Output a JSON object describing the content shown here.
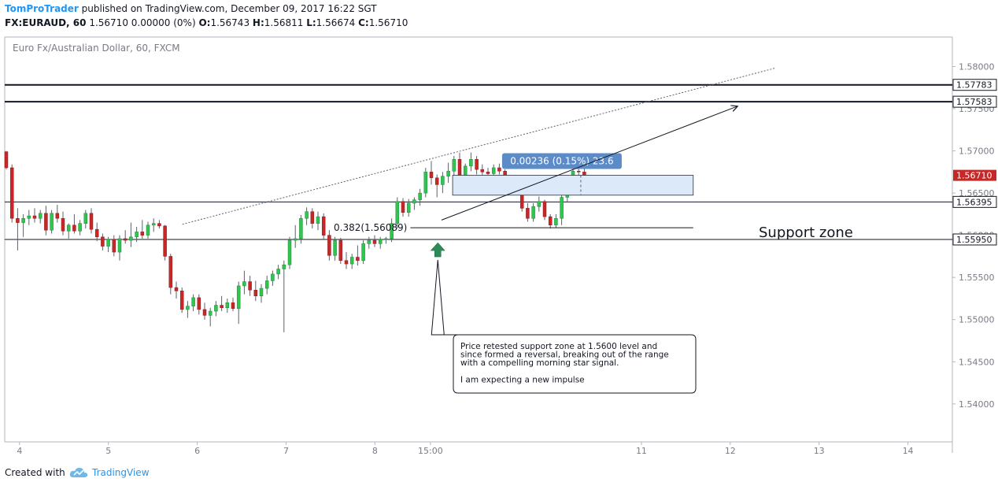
{
  "header": {
    "author": "TomProTrader",
    "published_text": "published on TradingView.com, December 09, 2017 16:22 SGT",
    "symbol": "FX:EURAUD, 60",
    "last": "1.56710",
    "change": "0.00000 (0%)",
    "o_label": "O:",
    "o_value": "1.56743",
    "h_label": "H:",
    "h_value": "1.56811",
    "l_label": "L:",
    "l_value": "1.56674",
    "c_label": "C:",
    "c_value": "1.56710"
  },
  "footer": {
    "created_with": "Created with",
    "brand": "TradingView"
  },
  "colors": {
    "up": "#26a69a",
    "up_fill": "#2fc54e",
    "down": "#c62828",
    "brand": "#2196f3",
    "label_bg": "#5b8bc9"
  },
  "chart_data": {
    "type": "candlestick",
    "instrument_label": "Euro Fx/Australian Dollar, 60, FXCM",
    "y_range": [
      1.5355,
      1.5835
    ],
    "x_range": [
      "2017-12-03T20:00",
      "2017-12-14T12:00"
    ],
    "y_ticks": [
      "1.58000",
      "1.57500",
      "1.57000",
      "1.56500",
      "1.56000",
      "1.55500",
      "1.55000",
      "1.54500",
      "1.54000"
    ],
    "x_ticks": [
      {
        "label": "4",
        "t": "2017-12-04T00:00"
      },
      {
        "label": "5",
        "t": "2017-12-05T00:00"
      },
      {
        "label": "6",
        "t": "2017-12-06T00:00"
      },
      {
        "label": "7",
        "t": "2017-12-07T00:00"
      },
      {
        "label": "8",
        "t": "2017-12-08T00:00"
      },
      {
        "label": "15:00",
        "t": "2017-12-08T15:00"
      },
      {
        "label": "11",
        "t": "2017-12-11T00:00"
      },
      {
        "label": "12",
        "t": "2017-12-12T00:00"
      },
      {
        "label": "13",
        "t": "2017-12-13T00:00"
      },
      {
        "label": "14",
        "t": "2017-12-14T00:00"
      }
    ],
    "horizontal_levels": [
      {
        "price": 1.57783,
        "label": "1.57783",
        "weight": "heavy"
      },
      {
        "price": 1.57583,
        "label": "1.57583",
        "weight": "heavy"
      },
      {
        "price": 1.56395,
        "label": "1.56395",
        "weight": "light"
      },
      {
        "price": 1.5595,
        "label": "1.55950",
        "weight": "light"
      }
    ],
    "last_price": {
      "price": 1.5671,
      "label": "1.56710"
    },
    "candles": [
      {
        "o": 1.5699,
        "h": 1.57,
        "l": 1.5678,
        "c": 1.568
      },
      {
        "o": 1.568,
        "h": 1.5684,
        "l": 1.5615,
        "c": 1.562
      },
      {
        "o": 1.562,
        "h": 1.5632,
        "l": 1.5582,
        "c": 1.5615
      },
      {
        "o": 1.5615,
        "h": 1.5625,
        "l": 1.5598,
        "c": 1.562
      },
      {
        "o": 1.562,
        "h": 1.563,
        "l": 1.5612,
        "c": 1.5623
      },
      {
        "o": 1.5623,
        "h": 1.5632,
        "l": 1.5615,
        "c": 1.562
      },
      {
        "o": 1.562,
        "h": 1.563,
        "l": 1.5614,
        "c": 1.5626
      },
      {
        "o": 1.5626,
        "h": 1.5635,
        "l": 1.56,
        "c": 1.5606
      },
      {
        "o": 1.5606,
        "h": 1.563,
        "l": 1.5602,
        "c": 1.5626
      },
      {
        "o": 1.5626,
        "h": 1.5636,
        "l": 1.5615,
        "c": 1.562
      },
      {
        "o": 1.562,
        "h": 1.5628,
        "l": 1.56,
        "c": 1.5605
      },
      {
        "o": 1.5605,
        "h": 1.5614,
        "l": 1.5596,
        "c": 1.5612
      },
      {
        "o": 1.5612,
        "h": 1.5625,
        "l": 1.5602,
        "c": 1.5605
      },
      {
        "o": 1.5605,
        "h": 1.5618,
        "l": 1.56,
        "c": 1.5614
      },
      {
        "o": 1.5614,
        "h": 1.563,
        "l": 1.5608,
        "c": 1.5626
      },
      {
        "o": 1.5626,
        "h": 1.5632,
        "l": 1.5602,
        "c": 1.5607
      },
      {
        "o": 1.5607,
        "h": 1.5615,
        "l": 1.5593,
        "c": 1.5598
      },
      {
        "o": 1.5598,
        "h": 1.5602,
        "l": 1.5582,
        "c": 1.5587
      },
      {
        "o": 1.5587,
        "h": 1.5598,
        "l": 1.558,
        "c": 1.5595
      },
      {
        "o": 1.5595,
        "h": 1.56,
        "l": 1.5575,
        "c": 1.558
      },
      {
        "o": 1.558,
        "h": 1.56,
        "l": 1.557,
        "c": 1.5596
      },
      {
        "o": 1.5596,
        "h": 1.5606,
        "l": 1.559,
        "c": 1.5594
      },
      {
        "o": 1.5594,
        "h": 1.5615,
        "l": 1.5586,
        "c": 1.5598
      },
      {
        "o": 1.5598,
        "h": 1.561,
        "l": 1.5592,
        "c": 1.5604
      },
      {
        "o": 1.5604,
        "h": 1.5618,
        "l": 1.5596,
        "c": 1.56
      },
      {
        "o": 1.56,
        "h": 1.5616,
        "l": 1.5596,
        "c": 1.5612
      },
      {
        "o": 1.5612,
        "h": 1.562,
        "l": 1.5604,
        "c": 1.5614
      },
      {
        "o": 1.5614,
        "h": 1.5618,
        "l": 1.5608,
        "c": 1.5611
      },
      {
        "o": 1.5611,
        "h": 1.5612,
        "l": 1.557,
        "c": 1.5575
      },
      {
        "o": 1.5575,
        "h": 1.5578,
        "l": 1.553,
        "c": 1.5538
      },
      {
        "o": 1.5538,
        "h": 1.5545,
        "l": 1.5525,
        "c": 1.5534
      },
      {
        "o": 1.5534,
        "h": 1.5538,
        "l": 1.5508,
        "c": 1.5512
      },
      {
        "o": 1.5512,
        "h": 1.5522,
        "l": 1.5502,
        "c": 1.5516
      },
      {
        "o": 1.5516,
        "h": 1.553,
        "l": 1.551,
        "c": 1.5526
      },
      {
        "o": 1.5526,
        "h": 1.553,
        "l": 1.5506,
        "c": 1.5512
      },
      {
        "o": 1.5512,
        "h": 1.552,
        "l": 1.55,
        "c": 1.5505
      },
      {
        "o": 1.5505,
        "h": 1.5514,
        "l": 1.5492,
        "c": 1.551
      },
      {
        "o": 1.551,
        "h": 1.5522,
        "l": 1.5504,
        "c": 1.5517
      },
      {
        "o": 1.5517,
        "h": 1.5528,
        "l": 1.551,
        "c": 1.5514
      },
      {
        "o": 1.5514,
        "h": 1.5525,
        "l": 1.5508,
        "c": 1.552
      },
      {
        "o": 1.552,
        "h": 1.5526,
        "l": 1.551,
        "c": 1.5513
      },
      {
        "o": 1.5513,
        "h": 1.5545,
        "l": 1.5495,
        "c": 1.554
      },
      {
        "o": 1.554,
        "h": 1.5558,
        "l": 1.553,
        "c": 1.5545
      },
      {
        "o": 1.5545,
        "h": 1.5552,
        "l": 1.5528,
        "c": 1.5535
      },
      {
        "o": 1.5535,
        "h": 1.5546,
        "l": 1.5522,
        "c": 1.5528
      },
      {
        "o": 1.5528,
        "h": 1.5542,
        "l": 1.552,
        "c": 1.5537
      },
      {
        "o": 1.5537,
        "h": 1.5552,
        "l": 1.553,
        "c": 1.5546
      },
      {
        "o": 1.5546,
        "h": 1.5558,
        "l": 1.554,
        "c": 1.5554
      },
      {
        "o": 1.5554,
        "h": 1.5565,
        "l": 1.5548,
        "c": 1.556
      },
      {
        "o": 1.556,
        "h": 1.557,
        "l": 1.5485,
        "c": 1.5565
      },
      {
        "o": 1.5565,
        "h": 1.5598,
        "l": 1.556,
        "c": 1.5594
      },
      {
        "o": 1.5594,
        "h": 1.5612,
        "l": 1.5585,
        "c": 1.5596
      },
      {
        "o": 1.5596,
        "h": 1.5624,
        "l": 1.559,
        "c": 1.562
      },
      {
        "o": 1.562,
        "h": 1.5633,
        "l": 1.5612,
        "c": 1.5628
      },
      {
        "o": 1.5628,
        "h": 1.5632,
        "l": 1.5608,
        "c": 1.5614
      },
      {
        "o": 1.5614,
        "h": 1.5628,
        "l": 1.5606,
        "c": 1.5622
      },
      {
        "o": 1.5622,
        "h": 1.5626,
        "l": 1.5595,
        "c": 1.56
      },
      {
        "o": 1.56,
        "h": 1.5606,
        "l": 1.557,
        "c": 1.5576
      },
      {
        "o": 1.5576,
        "h": 1.5598,
        "l": 1.557,
        "c": 1.5594
      },
      {
        "o": 1.5594,
        "h": 1.5597,
        "l": 1.5566,
        "c": 1.557
      },
      {
        "o": 1.557,
        "h": 1.558,
        "l": 1.556,
        "c": 1.5566
      },
      {
        "o": 1.5566,
        "h": 1.5578,
        "l": 1.556,
        "c": 1.5574
      },
      {
        "o": 1.5574,
        "h": 1.5588,
        "l": 1.5564,
        "c": 1.557
      },
      {
        "o": 1.557,
        "h": 1.5594,
        "l": 1.5566,
        "c": 1.559
      },
      {
        "o": 1.559,
        "h": 1.5598,
        "l": 1.5584,
        "c": 1.5594
      },
      {
        "o": 1.5594,
        "h": 1.56,
        "l": 1.5586,
        "c": 1.559
      },
      {
        "o": 1.559,
        "h": 1.5598,
        "l": 1.5584,
        "c": 1.5595
      },
      {
        "o": 1.5595,
        "h": 1.5598,
        "l": 1.559,
        "c": 1.5596
      },
      {
        "o": 1.5596,
        "h": 1.562,
        "l": 1.5592,
        "c": 1.5614
      },
      {
        "o": 1.5614,
        "h": 1.5645,
        "l": 1.5608,
        "c": 1.564
      },
      {
        "o": 1.564,
        "h": 1.5644,
        "l": 1.5622,
        "c": 1.5627
      },
      {
        "o": 1.5627,
        "h": 1.5643,
        "l": 1.5622,
        "c": 1.5638
      },
      {
        "o": 1.5638,
        "h": 1.5645,
        "l": 1.563,
        "c": 1.5642
      },
      {
        "o": 1.5642,
        "h": 1.5655,
        "l": 1.5635,
        "c": 1.565
      },
      {
        "o": 1.565,
        "h": 1.568,
        "l": 1.5645,
        "c": 1.5675
      },
      {
        "o": 1.5675,
        "h": 1.5688,
        "l": 1.566,
        "c": 1.5668
      },
      {
        "o": 1.5668,
        "h": 1.5672,
        "l": 1.5645,
        "c": 1.566
      },
      {
        "o": 1.566,
        "h": 1.5675,
        "l": 1.565,
        "c": 1.567
      },
      {
        "o": 1.567,
        "h": 1.5686,
        "l": 1.5662,
        "c": 1.5676
      },
      {
        "o": 1.5676,
        "h": 1.5694,
        "l": 1.567,
        "c": 1.569
      },
      {
        "o": 1.569,
        "h": 1.5698,
        "l": 1.5662,
        "c": 1.5668
      },
      {
        "o": 1.5668,
        "h": 1.5685,
        "l": 1.5662,
        "c": 1.5682
      },
      {
        "o": 1.5682,
        "h": 1.5698,
        "l": 1.5676,
        "c": 1.569
      },
      {
        "o": 1.569,
        "h": 1.5694,
        "l": 1.5672,
        "c": 1.5678
      },
      {
        "o": 1.5678,
        "h": 1.5684,
        "l": 1.567,
        "c": 1.5675
      },
      {
        "o": 1.5675,
        "h": 1.568,
        "l": 1.5668,
        "c": 1.5673
      },
      {
        "o": 1.5673,
        "h": 1.5684,
        "l": 1.5668,
        "c": 1.568
      },
      {
        "o": 1.568,
        "h": 1.5685,
        "l": 1.5672,
        "c": 1.5676
      },
      {
        "o": 1.5676,
        "h": 1.5678,
        "l": 1.5658,
        "c": 1.5662
      },
      {
        "o": 1.5662,
        "h": 1.5668,
        "l": 1.5652,
        "c": 1.5658
      },
      {
        "o": 1.5658,
        "h": 1.5664,
        "l": 1.565,
        "c": 1.566
      },
      {
        "o": 1.566,
        "h": 1.5664,
        "l": 1.5628,
        "c": 1.5632
      },
      {
        "o": 1.5632,
        "h": 1.5638,
        "l": 1.5616,
        "c": 1.562
      },
      {
        "o": 1.562,
        "h": 1.5638,
        "l": 1.5616,
        "c": 1.5634
      },
      {
        "o": 1.5634,
        "h": 1.5646,
        "l": 1.5628,
        "c": 1.564
      },
      {
        "o": 1.564,
        "h": 1.5642,
        "l": 1.5618,
        "c": 1.5622
      },
      {
        "o": 1.5622,
        "h": 1.5625,
        "l": 1.5608,
        "c": 1.5612
      },
      {
        "o": 1.5612,
        "h": 1.5625,
        "l": 1.5609,
        "c": 1.562
      },
      {
        "o": 1.562,
        "h": 1.565,
        "l": 1.5612,
        "c": 1.5645
      },
      {
        "o": 1.5645,
        "h": 1.5668,
        "l": 1.564,
        "c": 1.5665
      },
      {
        "o": 1.5665,
        "h": 1.568,
        "l": 1.566,
        "c": 1.5676
      },
      {
        "o": 1.5676,
        "h": 1.5681,
        "l": 1.5667,
        "c": 1.5675
      },
      {
        "o": 1.5675,
        "h": 1.5681,
        "l": 1.5668,
        "c": 1.5671
      }
    ],
    "annotations": {
      "fib_label": "0.382(1.56089)",
      "fib_level": 1.56089,
      "fib_x_range": [
        "2017-12-08T10:00",
        "2017-12-11T14:00"
      ],
      "measure_label": "0.00236 (0.15%) 23.6",
      "measure_box": {
        "t_from": "2017-12-08T21:00",
        "t_to": "2017-12-11T14:00",
        "p_from": 1.56475,
        "p_to": 1.56711
      },
      "trendline": {
        "t1": "2017-12-05T20:00",
        "p1": 1.5613,
        "t2": "2017-12-12T12:00",
        "p2": 1.5798
      },
      "arrow_line": {
        "t1": "2017-12-08T18:00",
        "p1": 1.5618,
        "t2": "2017-12-12T02:00",
        "p2": 1.5753
      },
      "support_zone_label": "Support zone",
      "callout_lines": [
        "Price retested support zone at 1.5600 level and",
        "since formed a reversal, breaking out of the range",
        "with a compelling morning star signal.",
        "",
        "I am expecting a new impulse"
      ],
      "marker_arrow": {
        "t": "2017-12-08T17:00",
        "p": 1.558
      }
    }
  }
}
